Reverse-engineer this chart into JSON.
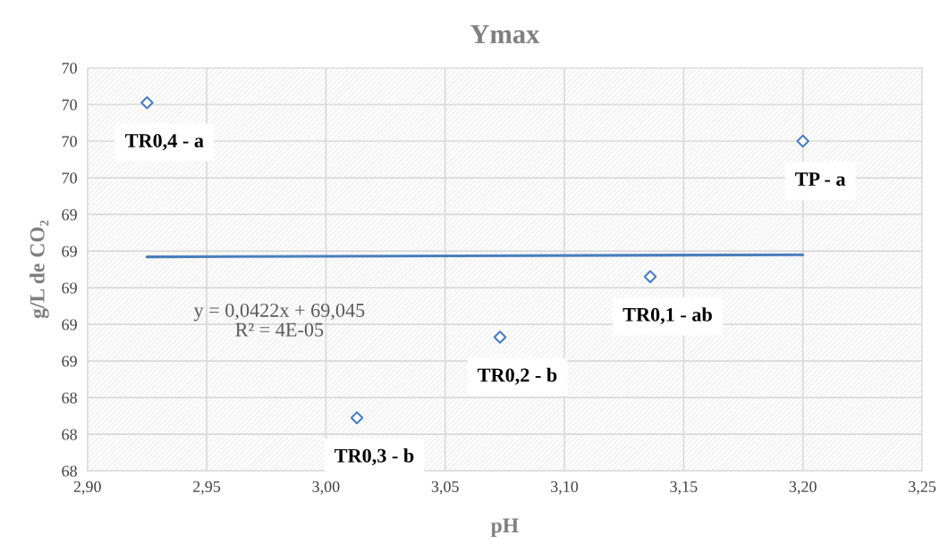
{
  "chart_data": {
    "type": "scatter",
    "title": "Ymax",
    "xlabel": "pH",
    "ylabel": "g/L de CO₂",
    "series": [
      {
        "color": "#4a7ebb",
        "marker": "diamond",
        "x": [
          2.925,
          3.2,
          3.136,
          3.073,
          3.013
        ],
        "values": [
          70.01,
          69.8,
          69.06,
          68.73,
          68.29
        ]
      },
      {
        "type": "line",
        "color": "#4a7ebb",
        "marker": "none",
        "line_style": "solid",
        "x": [
          2.925,
          3.2
        ],
        "values": [
          69.168,
          69.18
        ]
      }
    ],
    "annotations": [
      {
        "text": "TR0,4 - a",
        "x": 2.925,
        "y": 70.01
      },
      {
        "text": "TP - a",
        "x": 3.2,
        "y": 69.8
      },
      {
        "text": "TR0,1 - ab",
        "x": 3.136,
        "y": 69.06
      },
      {
        "text": "TR0,2 - b",
        "x": 3.073,
        "y": 68.73
      },
      {
        "text": "TR0,3 - b",
        "x": 3.013,
        "y": 68.29
      },
      "y = 0,0422x + 69,045\nR² = 4E-05"
    ],
    "xlim": [
      2.9,
      3.25
    ],
    "xticks": [
      {
        "value": 2.9,
        "label": "2,90"
      },
      {
        "value": 2.95,
        "label": "2,95"
      },
      {
        "value": 3.0,
        "label": "3,00"
      },
      {
        "value": 3.05,
        "label": "3,05"
      },
      {
        "value": 3.1,
        "label": "3,10"
      },
      {
        "value": 3.15,
        "label": "3,15"
      },
      {
        "value": 3.2,
        "label": "3,20"
      },
      {
        "value": 3.25,
        "label": "3,25"
      }
    ],
    "ylim": [
      68.0,
      70.2
    ],
    "yticks": [
      {
        "value": 68.0,
        "label": "68"
      },
      {
        "value": 68.2,
        "label": "68"
      },
      {
        "value": 68.4,
        "label": "68"
      },
      {
        "value": 68.6,
        "label": "69"
      },
      {
        "value": 68.8,
        "label": "69"
      },
      {
        "value": 69.0,
        "label": "69"
      },
      {
        "value": 69.2,
        "label": "69"
      },
      {
        "value": 69.4,
        "label": "69"
      },
      {
        "value": 69.6,
        "label": "70"
      },
      {
        "value": 69.8,
        "label": "70"
      },
      {
        "value": 70.0,
        "label": "70"
      },
      {
        "value": 70.2,
        "label": "70"
      }
    ],
    "grid": true,
    "legend": false
  }
}
